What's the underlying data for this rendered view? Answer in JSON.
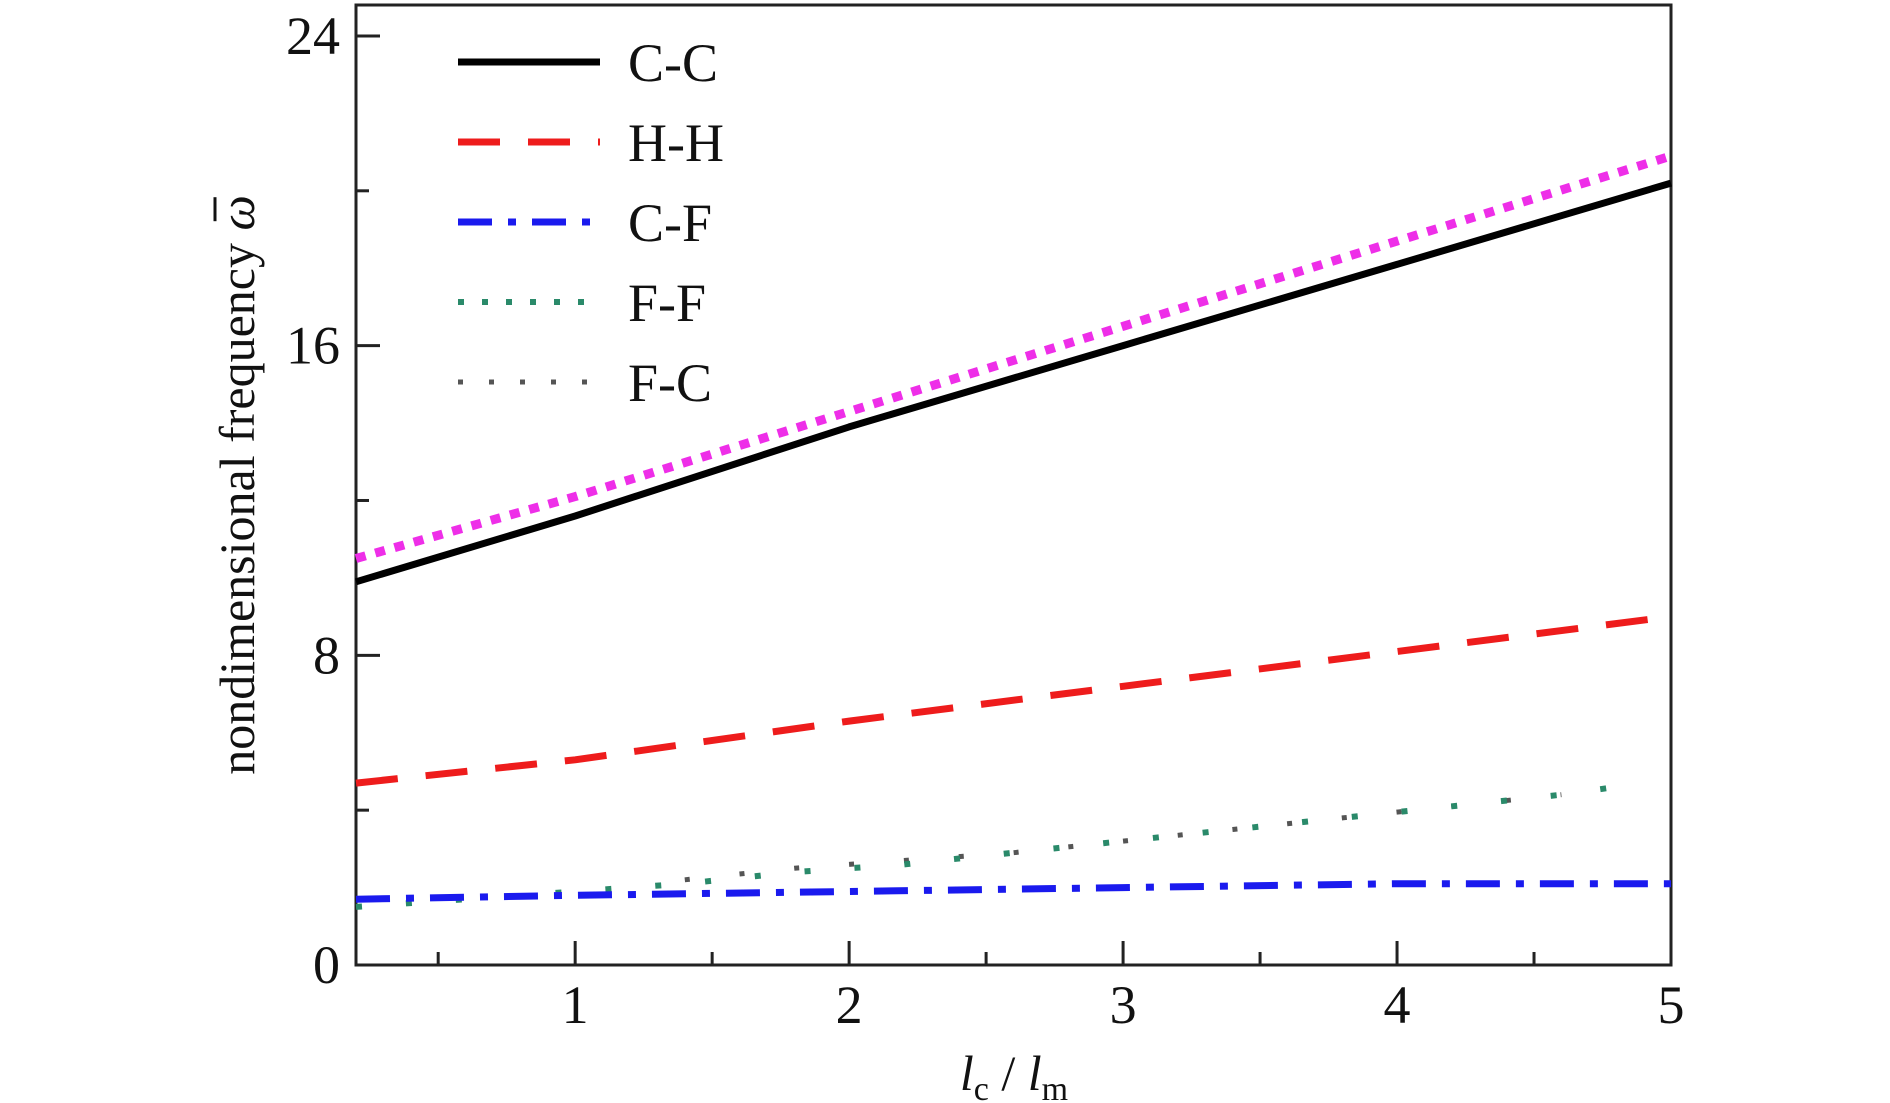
{
  "chart_data": {
    "type": "line",
    "xlabel": "l_c / l_m",
    "xlabel_parts": {
      "l1": "l",
      "sub1": "c",
      "slash": " / ",
      "l2": "l",
      "sub2": "m"
    },
    "ylabel": "nondimensional frequency ω̄",
    "ylabel_parts": {
      "text": "nondimensional frequency ",
      "symbol": "ω"
    },
    "xlim": [
      0.2,
      5
    ],
    "ylim": [
      0,
      24.8
    ],
    "xticks": [
      1,
      2,
      3,
      4,
      5
    ],
    "xtick_labels": [
      "1",
      "2",
      "3",
      "4",
      "5"
    ],
    "yticks": [
      0,
      8,
      16,
      24
    ],
    "ytick_labels": [
      "0",
      "8",
      "16",
      "24"
    ],
    "grid": false,
    "legend_position": "top-left",
    "series": [
      {
        "name": "C-C",
        "color": "#000000",
        "style": "solid",
        "x": [
          0.2,
          1,
          2,
          3,
          4,
          5
        ],
        "y": [
          9.9,
          11.6,
          13.9,
          16.0,
          18.1,
          20.2
        ]
      },
      {
        "name": "H-H",
        "color": "#ee1c1c",
        "style": "dashed",
        "x": [
          0.2,
          1,
          2,
          3,
          4,
          5
        ],
        "y": [
          4.7,
          5.3,
          6.3,
          7.2,
          8.1,
          9.0
        ]
      },
      {
        "name": "C-F",
        "color": "#1a1aee",
        "style": "dashdot",
        "x": [
          0.2,
          1,
          2,
          3,
          4,
          5
        ],
        "y": [
          1.7,
          1.8,
          1.9,
          2.0,
          2.1,
          2.1
        ]
      },
      {
        "name": "F-F",
        "color": "#2a8a6a",
        "style": "dotted",
        "x": [
          0.2,
          0.6,
          1.0,
          1.4,
          1.8,
          2.2,
          2.6,
          3.0,
          3.4,
          3.8,
          4.2,
          4.6,
          4.8
        ],
        "y": [
          1.5,
          1.7,
          1.9,
          2.1,
          2.4,
          2.6,
          2.9,
          3.2,
          3.5,
          3.8,
          4.1,
          4.4,
          4.6
        ]
      },
      {
        "name": "F-C",
        "color": "#555555",
        "style": "sparse-dotted",
        "x": [
          1.4,
          1.8,
          2.2,
          2.6,
          3.0,
          3.4,
          3.8,
          4.2,
          4.6
        ],
        "y": [
          2.2,
          2.5,
          2.7,
          2.9,
          3.2,
          3.5,
          3.8,
          4.1,
          4.4
        ]
      },
      {
        "name": "",
        "color": "#ee2ee8",
        "style": "thick-dotted",
        "x": [
          0.2,
          1,
          2,
          3,
          4,
          5
        ],
        "y": [
          10.5,
          12.1,
          14.3,
          16.5,
          18.7,
          20.9
        ]
      }
    ]
  }
}
